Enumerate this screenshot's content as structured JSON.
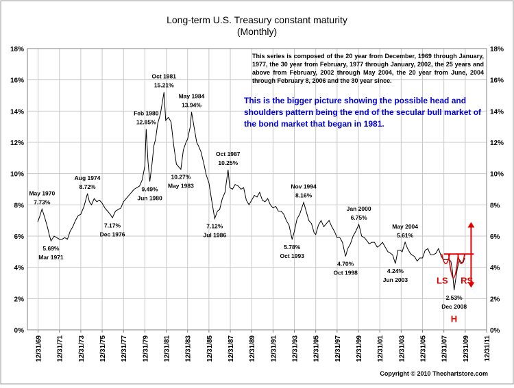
{
  "chart_data": {
    "type": "line",
    "title": "Long-term U.S. Treasury constant maturity",
    "subtitle": "(Monthly)",
    "note": "This series is composed of the 20 year from December, 1969 through January, 1977, the 30 year from February, 1977 through January, 2002, the 25 years and above from February, 2002 through May 2004, the 20 year from June, 2004 through February 8, 2006 and the 30 year since.",
    "commentary": "This is the bigger picture showing the possible head and shoulders pattern being the end of the secular bull market of the bond market that began in 1981.",
    "copyright": "Copyright © 2010 Thechartstore.com",
    "xlim": [
      1969.0,
      2012.0
    ],
    "ylim": [
      0,
      18
    ],
    "grid": true,
    "legend": "none",
    "line_color": "#000000",
    "annotation_color": "#e00000",
    "commentary_color": "#0000dd",
    "x_tick_labels": [
      "12/31/69",
      "12/31/71",
      "12/31/73",
      "12/31/75",
      "12/31/77",
      "12/31/79",
      "12/31/81",
      "12/31/83",
      "12/31/85",
      "12/31/87",
      "12/31/89",
      "12/31/91",
      "12/31/93",
      "12/31/95",
      "12/31/97",
      "12/31/99",
      "12/31/01",
      "12/31/03",
      "12/31/05",
      "12/31/07",
      "12/31/09",
      "12/31/11"
    ],
    "y_tick_labels": [
      "0%",
      "2%",
      "4%",
      "6%",
      "8%",
      "10%",
      "12%",
      "14%",
      "16%",
      "18%"
    ],
    "series": [
      {
        "points": [
          [
            1969.96,
            6.9
          ],
          [
            1970.12,
            7.2
          ],
          [
            1970.37,
            7.73
          ],
          [
            1970.62,
            7.2
          ],
          [
            1970.87,
            6.6
          ],
          [
            1971.04,
            6.1
          ],
          [
            1971.21,
            5.69
          ],
          [
            1971.5,
            6.0
          ],
          [
            1971.75,
            5.9
          ],
          [
            1972.0,
            5.8
          ],
          [
            1972.25,
            5.8
          ],
          [
            1972.5,
            5.9
          ],
          [
            1972.75,
            5.8
          ],
          [
            1973.0,
            6.3
          ],
          [
            1973.25,
            6.6
          ],
          [
            1973.5,
            7.0
          ],
          [
            1973.75,
            7.3
          ],
          [
            1974.0,
            7.4
          ],
          [
            1974.3,
            7.9
          ],
          [
            1974.62,
            8.72
          ],
          [
            1974.8,
            8.2
          ],
          [
            1975.0,
            8.0
          ],
          [
            1975.25,
            8.4
          ],
          [
            1975.5,
            8.2
          ],
          [
            1975.75,
            8.3
          ],
          [
            1976.0,
            8.1
          ],
          [
            1976.25,
            7.8
          ],
          [
            1976.5,
            7.6
          ],
          [
            1976.75,
            7.4
          ],
          [
            1976.96,
            7.17
          ],
          [
            1977.25,
            7.6
          ],
          [
            1977.5,
            7.7
          ],
          [
            1977.75,
            7.8
          ],
          [
            1978.0,
            8.2
          ],
          [
            1978.5,
            8.6
          ],
          [
            1978.75,
            8.8
          ],
          [
            1979.0,
            9.0
          ],
          [
            1979.25,
            9.1
          ],
          [
            1979.5,
            9.2
          ],
          [
            1979.75,
            9.6
          ],
          [
            1980.0,
            10.5
          ],
          [
            1980.12,
            12.85
          ],
          [
            1980.29,
            10.8
          ],
          [
            1980.46,
            9.49
          ],
          [
            1980.65,
            10.5
          ],
          [
            1980.85,
            11.8
          ],
          [
            1981.0,
            12.2
          ],
          [
            1981.2,
            13.2
          ],
          [
            1981.45,
            13.8
          ],
          [
            1981.79,
            15.21
          ],
          [
            1981.95,
            13.4
          ],
          [
            1982.2,
            13.6
          ],
          [
            1982.45,
            13.3
          ],
          [
            1982.7,
            11.8
          ],
          [
            1982.95,
            10.6
          ],
          [
            1983.37,
            10.27
          ],
          [
            1983.6,
            11.5
          ],
          [
            1983.85,
            12.0
          ],
          [
            1984.0,
            12.2
          ],
          [
            1984.25,
            13.0
          ],
          [
            1984.37,
            13.94
          ],
          [
            1984.6,
            13.0
          ],
          [
            1984.85,
            12.0
          ],
          [
            1985.0,
            11.8
          ],
          [
            1985.25,
            11.4
          ],
          [
            1985.5,
            10.7
          ],
          [
            1985.75,
            9.9
          ],
          [
            1986.0,
            9.4
          ],
          [
            1986.25,
            8.3
          ],
          [
            1986.54,
            7.12
          ],
          [
            1986.8,
            7.6
          ],
          [
            1987.0,
            7.7
          ],
          [
            1987.25,
            8.4
          ],
          [
            1987.5,
            8.8
          ],
          [
            1987.79,
            10.25
          ],
          [
            1987.95,
            9.1
          ],
          [
            1988.2,
            9.0
          ],
          [
            1988.45,
            9.3
          ],
          [
            1988.75,
            9.2
          ],
          [
            1989.0,
            9.0
          ],
          [
            1989.25,
            9.1
          ],
          [
            1989.5,
            8.3
          ],
          [
            1989.75,
            8.0
          ],
          [
            1990.0,
            8.3
          ],
          [
            1990.25,
            8.6
          ],
          [
            1990.5,
            8.5
          ],
          [
            1990.75,
            8.8
          ],
          [
            1991.0,
            8.3
          ],
          [
            1991.25,
            8.2
          ],
          [
            1991.5,
            8.4
          ],
          [
            1991.75,
            8.0
          ],
          [
            1992.0,
            7.8
          ],
          [
            1992.25,
            7.9
          ],
          [
            1992.5,
            7.6
          ],
          [
            1992.75,
            7.6
          ],
          [
            1993.0,
            7.4
          ],
          [
            1993.25,
            7.0
          ],
          [
            1993.5,
            6.7
          ],
          [
            1993.79,
            5.78
          ],
          [
            1994.0,
            6.3
          ],
          [
            1994.25,
            7.1
          ],
          [
            1994.5,
            7.4
          ],
          [
            1994.87,
            8.16
          ],
          [
            1995.1,
            7.6
          ],
          [
            1995.35,
            7.0
          ],
          [
            1995.6,
            6.8
          ],
          [
            1995.85,
            6.2
          ],
          [
            1996.0,
            6.1
          ],
          [
            1996.25,
            6.7
          ],
          [
            1996.5,
            7.0
          ],
          [
            1996.75,
            6.6
          ],
          [
            1997.0,
            6.8
          ],
          [
            1997.25,
            7.0
          ],
          [
            1997.5,
            6.6
          ],
          [
            1997.75,
            6.3
          ],
          [
            1998.0,
            5.9
          ],
          [
            1998.25,
            5.9
          ],
          [
            1998.5,
            5.6
          ],
          [
            1998.79,
            4.7
          ],
          [
            1999.0,
            5.2
          ],
          [
            1999.25,
            5.5
          ],
          [
            1999.5,
            6.0
          ],
          [
            1999.75,
            6.3
          ],
          [
            2000.04,
            6.75
          ],
          [
            2000.3,
            6.0
          ],
          [
            2000.55,
            5.9
          ],
          [
            2000.8,
            5.7
          ],
          [
            2001.0,
            5.5
          ],
          [
            2001.25,
            5.6
          ],
          [
            2001.5,
            5.6
          ],
          [
            2001.75,
            5.3
          ],
          [
            2002.0,
            5.4
          ],
          [
            2002.25,
            5.6
          ],
          [
            2002.5,
            5.3
          ],
          [
            2002.75,
            5.0
          ],
          [
            2003.0,
            4.9
          ],
          [
            2003.2,
            4.8
          ],
          [
            2003.46,
            4.24
          ],
          [
            2003.7,
            5.1
          ],
          [
            2003.9,
            5.1
          ],
          [
            2004.1,
            5.0
          ],
          [
            2004.37,
            5.61
          ],
          [
            2004.6,
            5.2
          ],
          [
            2004.85,
            4.9
          ],
          [
            2005.0,
            4.8
          ],
          [
            2005.25,
            4.7
          ],
          [
            2005.5,
            4.4
          ],
          [
            2005.75,
            4.6
          ],
          [
            2006.0,
            4.6
          ],
          [
            2006.25,
            5.1
          ],
          [
            2006.5,
            5.2
          ],
          [
            2006.75,
            4.8
          ],
          [
            2007.0,
            4.8
          ],
          [
            2007.25,
            4.9
          ],
          [
            2007.5,
            5.2
          ],
          [
            2007.75,
            4.7
          ],
          [
            2007.95,
            4.5
          ],
          [
            2008.2,
            4.5
          ],
          [
            2008.45,
            4.5
          ],
          [
            2008.65,
            4.4
          ],
          [
            2008.8,
            3.8
          ],
          [
            2008.96,
            2.53
          ],
          [
            2009.1,
            3.2
          ],
          [
            2009.25,
            3.9
          ],
          [
            2009.45,
            4.5
          ],
          [
            2009.65,
            4.3
          ],
          [
            2009.8,
            4.3
          ],
          [
            2009.95,
            4.6
          ]
        ]
      }
    ],
    "annotations": [
      {
        "date": "May 1970",
        "value": "7.73%",
        "x": 1970.37,
        "y": 7.73,
        "pos": "above"
      },
      {
        "date": "Mar 1971",
        "value": "5.69%",
        "x": 1971.21,
        "y": 5.69,
        "pos": "below"
      },
      {
        "date": "Aug 1974",
        "value": "8.72%",
        "x": 1974.62,
        "y": 8.72,
        "pos": "above"
      },
      {
        "date": "Dec 1976",
        "value": "7.17%",
        "x": 1976.96,
        "y": 7.17,
        "pos": "below"
      },
      {
        "date": "Feb 1980",
        "value": "12.85%",
        "x": 1980.12,
        "y": 12.85,
        "pos": "above"
      },
      {
        "date": "Jun 1980",
        "value": "9.49%",
        "x": 1980.46,
        "y": 9.49,
        "pos": "below"
      },
      {
        "date": "Oct 1981",
        "value": "15.21%",
        "x": 1981.79,
        "y": 15.21,
        "pos": "above"
      },
      {
        "date": "May 1983",
        "value": "10.27%",
        "x": 1983.37,
        "y": 10.27,
        "pos": "below"
      },
      {
        "date": "May 1984",
        "value": "13.94%",
        "x": 1984.37,
        "y": 13.94,
        "pos": "above"
      },
      {
        "date": "Jul 1986",
        "value": "7.12%",
        "x": 1986.54,
        "y": 7.12,
        "pos": "below"
      },
      {
        "date": "Oct 1987",
        "value": "10.25%",
        "x": 1987.79,
        "y": 10.25,
        "pos": "above"
      },
      {
        "date": "Oct 1993",
        "value": "5.78%",
        "x": 1993.79,
        "y": 5.78,
        "pos": "below"
      },
      {
        "date": "Nov 1994",
        "value": "8.16%",
        "x": 1994.87,
        "y": 8.16,
        "pos": "above"
      },
      {
        "date": "Oct 1998",
        "value": "4.70%",
        "x": 1998.79,
        "y": 4.7,
        "pos": "below"
      },
      {
        "date": "Jan 2000",
        "value": "6.75%",
        "x": 2000.04,
        "y": 6.75,
        "pos": "above"
      },
      {
        "date": "Jun 2003",
        "value": "4.24%",
        "x": 2003.46,
        "y": 4.24,
        "pos": "below"
      },
      {
        "date": "May 2004",
        "value": "5.61%",
        "x": 2004.37,
        "y": 5.61,
        "pos": "above"
      },
      {
        "date": "Dec 2008",
        "value": "2.53%",
        "x": 2008.96,
        "y": 2.53,
        "pos": "below"
      }
    ],
    "pattern": {
      "labels": {
        "left_shoulder": "LS",
        "head": "H",
        "right_shoulder": "RS"
      },
      "neckline_y": 4.85,
      "neckline_x": [
        2008.0,
        2010.8
      ],
      "target_arrow": {
        "x": 2010.55,
        "from_y": 4.85,
        "up_to_y": 6.9,
        "down_to_y": 2.7
      }
    }
  }
}
